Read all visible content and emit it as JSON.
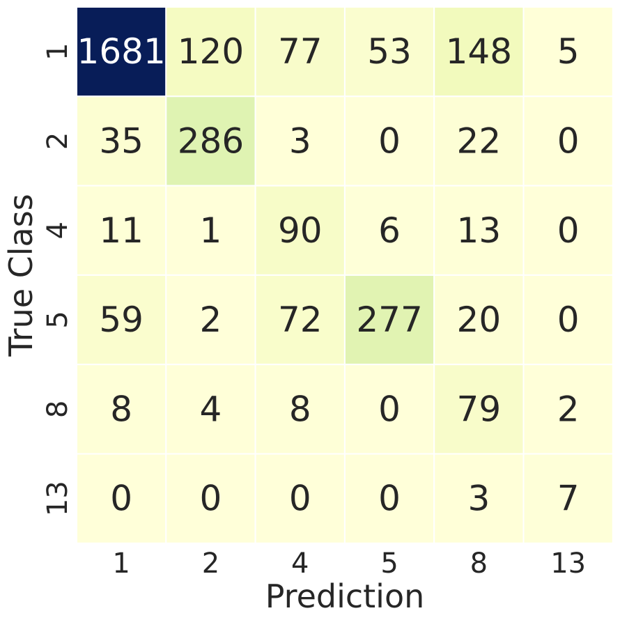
{
  "chart_data": {
    "type": "heatmap",
    "title": "",
    "xlabel": "Prediction",
    "ylabel": "True Class",
    "x_categories": [
      "1",
      "2",
      "4",
      "5",
      "8",
      "13"
    ],
    "y_categories": [
      "1",
      "2",
      "4",
      "5",
      "8",
      "13"
    ],
    "values": [
      [
        1681,
        120,
        77,
        53,
        148,
        5
      ],
      [
        35,
        286,
        3,
        0,
        22,
        0
      ],
      [
        11,
        1,
        90,
        6,
        13,
        0
      ],
      [
        59,
        2,
        72,
        277,
        20,
        0
      ],
      [
        8,
        4,
        8,
        0,
        79,
        2
      ],
      [
        0,
        0,
        0,
        0,
        3,
        7
      ]
    ],
    "colormap": "YlGnBu",
    "vmin": 0,
    "vmax": 1681,
    "colorbar": false,
    "annotations": true
  },
  "colors": {
    "text_dark": "#262626",
    "text_light": "#ffffff",
    "grid_line": "#ffffff"
  }
}
